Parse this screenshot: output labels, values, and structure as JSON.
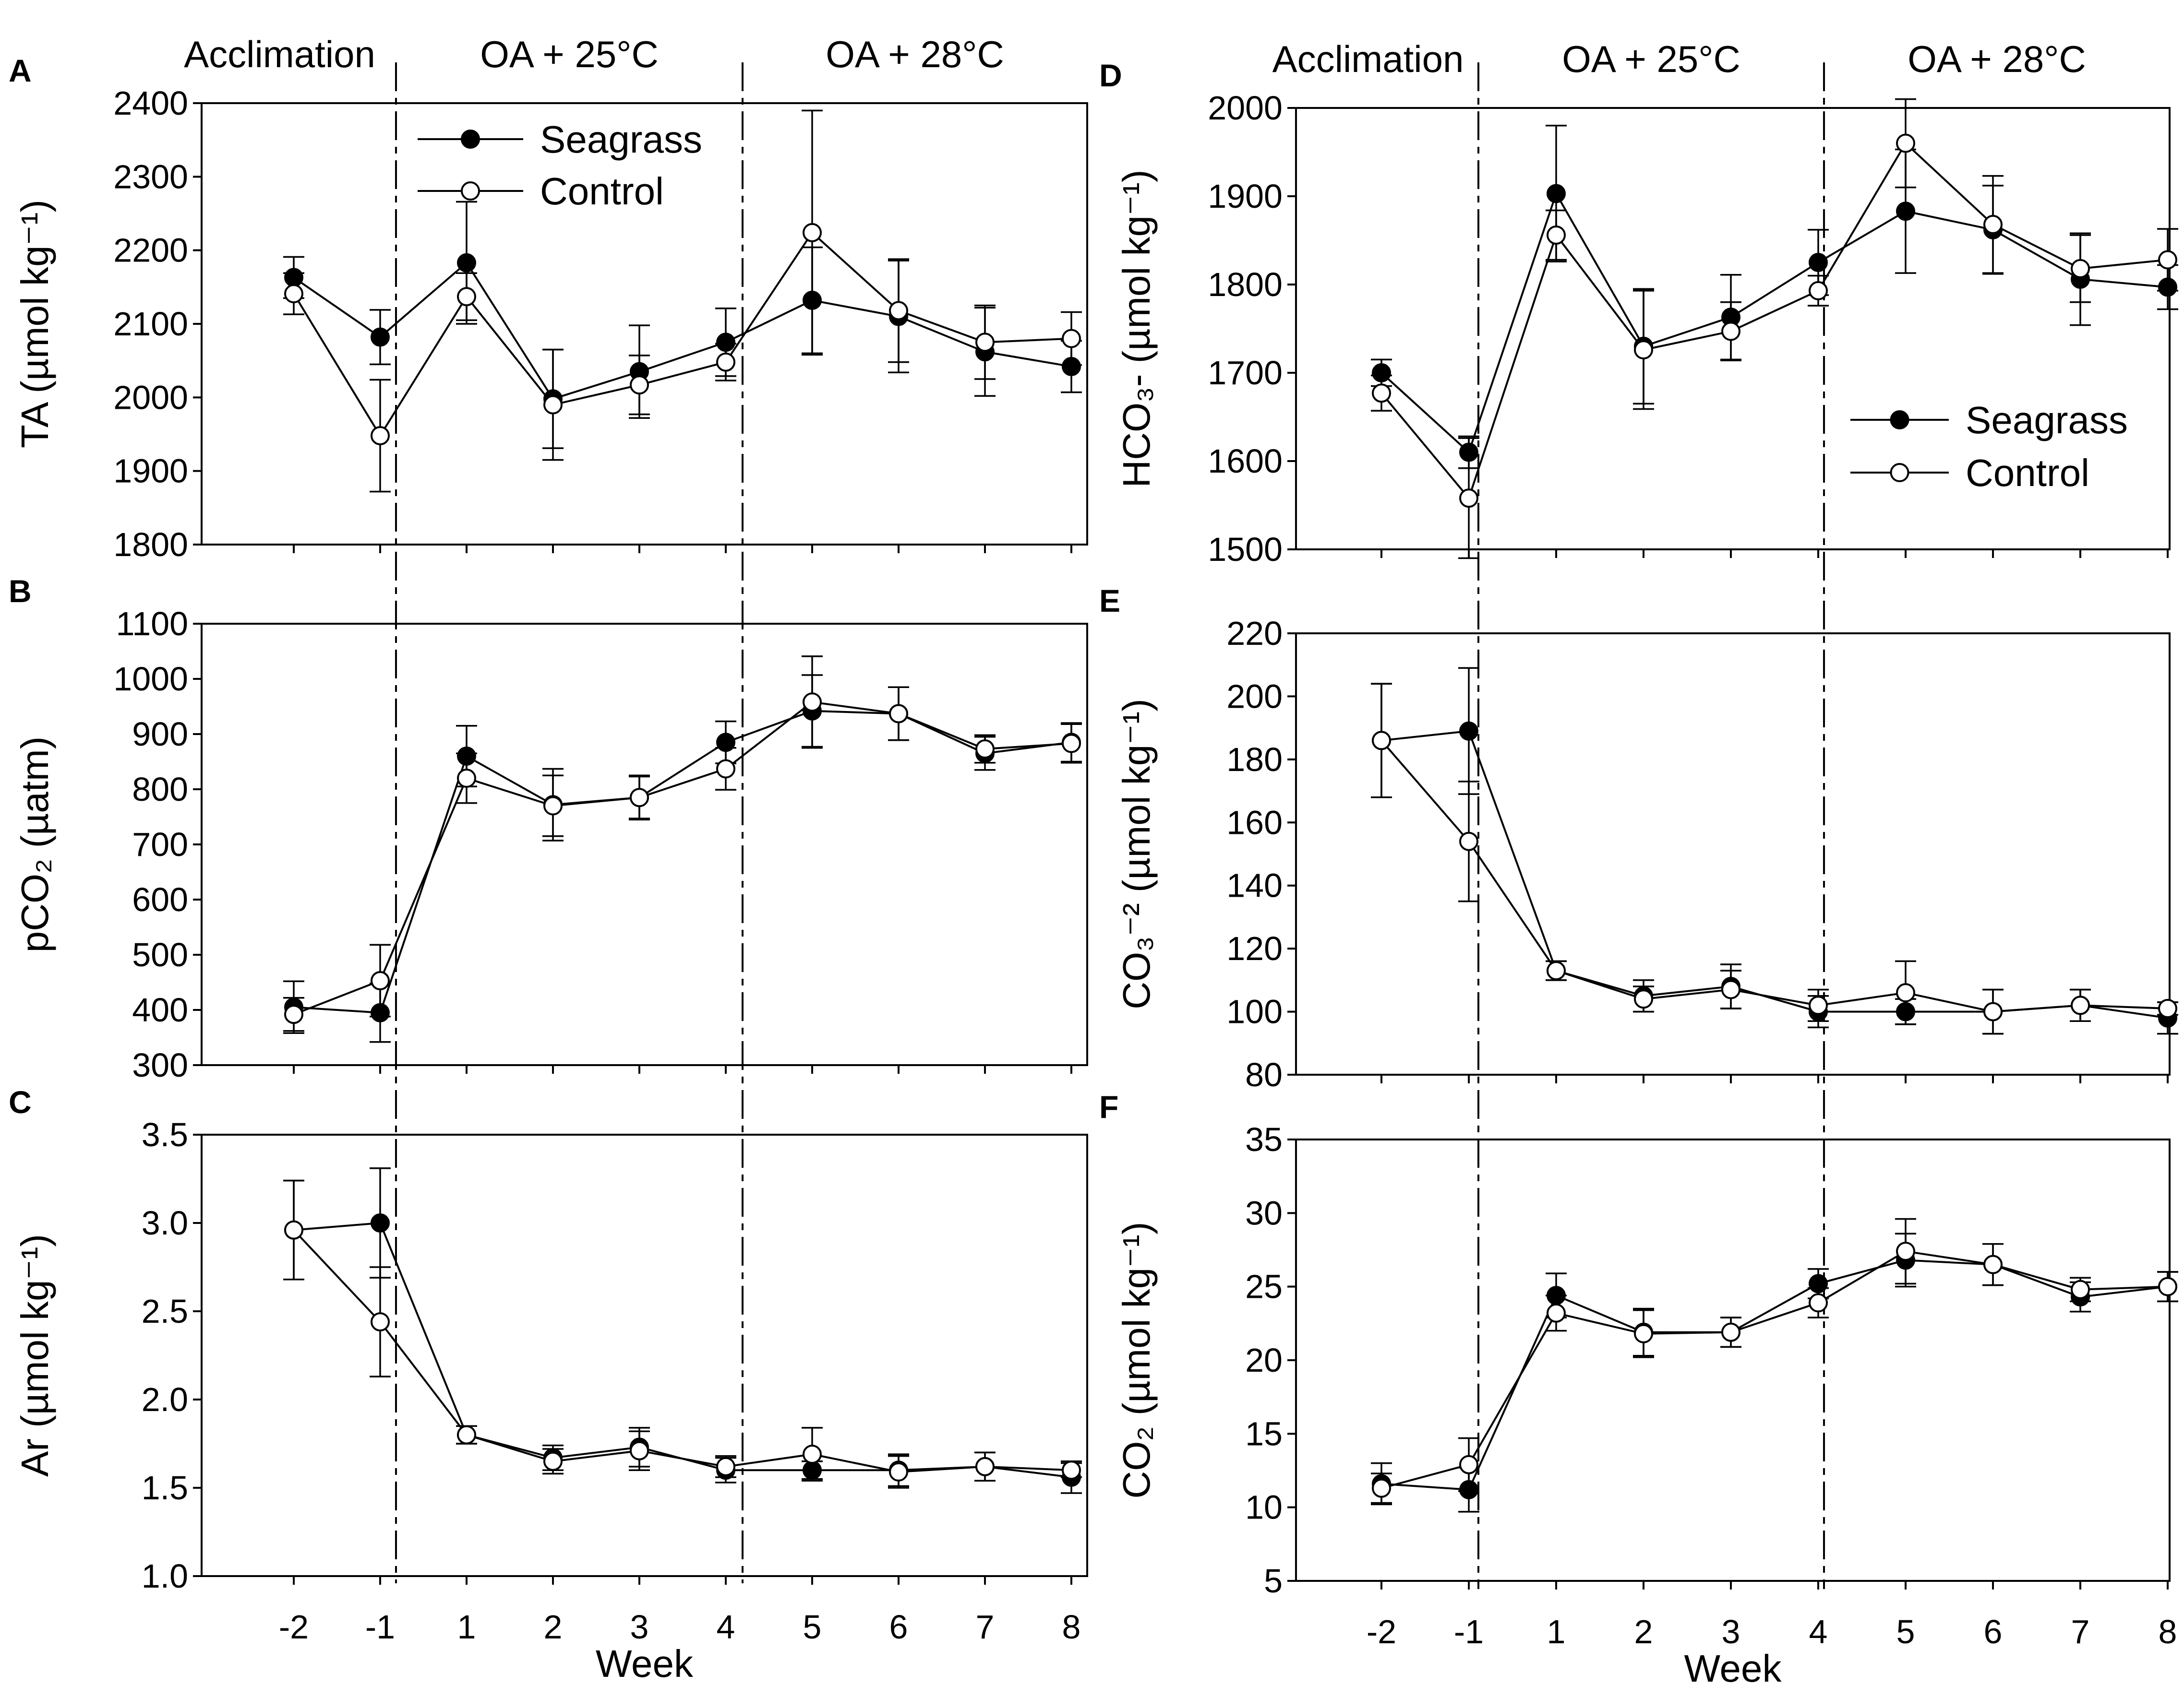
{
  "colors": {
    "ink": "#000000",
    "open_fill": "#ffffff",
    "filled": "#000000"
  },
  "legend": {
    "seagrass": "Seagrass",
    "control": "Control"
  },
  "x_ticks": [
    "-2",
    "-1",
    "1",
    "2",
    "3",
    "4",
    "5",
    "6",
    "7",
    "8"
  ],
  "x_label": "Week",
  "phases": [
    "Acclimation",
    "OA + 25°C",
    "OA + 28°C"
  ],
  "chart_data": [
    {
      "type": "line",
      "panel": "A",
      "ylabel": "TA (µmol kg⁻¹)",
      "ylim": [
        1800,
        2400
      ],
      "yticks": [
        1800,
        1900,
        2000,
        2100,
        2200,
        2300,
        2400
      ],
      "legend": "top-left",
      "series": [
        {
          "name": "Seagrass",
          "marker": "filled",
          "values": [
            2163,
            2082,
            2183,
            1998,
            2035,
            2075,
            2132,
            2110,
            2062,
            2042
          ],
          "errors": [
            28,
            37,
            83,
            67,
            63,
            46,
            72,
            76,
            60,
            35
          ]
        },
        {
          "name": "Control",
          "marker": "open",
          "values": [
            2141,
            1948,
            2137,
            1990,
            2017,
            2048,
            2224,
            2118,
            2075,
            2080
          ],
          "errors": [
            28,
            76,
            32,
            75,
            40,
            25,
            166,
            70,
            50,
            36
          ]
        }
      ]
    },
    {
      "type": "line",
      "panel": "B",
      "ylabel": "pCO₂ (µatm)",
      "ylim": [
        300,
        1100
      ],
      "yticks": [
        300,
        400,
        500,
        600,
        700,
        800,
        900,
        1000,
        1100
      ],
      "series": [
        {
          "name": "Seagrass",
          "marker": "filled",
          "values": [
            405,
            395,
            860,
            772,
            785,
            885,
            942,
            937,
            865,
            885
          ],
          "errors": [
            47,
            53,
            55,
            65,
            38,
            38,
            65,
            48,
            30,
            35
          ]
        },
        {
          "name": "Control",
          "marker": "open",
          "values": [
            392,
            453,
            820,
            770,
            785,
            837,
            958,
            937,
            873,
            883
          ],
          "errors": [
            30,
            65,
            45,
            55,
            40,
            38,
            83,
            48,
            25,
            35
          ]
        }
      ]
    },
    {
      "type": "line",
      "panel": "C",
      "ylabel": "Ar (µmol kg⁻¹)",
      "ylim": [
        1.0,
        3.5
      ],
      "yticks": [
        1.0,
        1.5,
        2.0,
        2.5,
        3.0,
        3.5
      ],
      "ytick_decimals": 1,
      "series": [
        {
          "name": "Seagrass",
          "marker": "filled",
          "values": [
            2.96,
            3.0,
            1.8,
            1.67,
            1.73,
            1.6,
            1.6,
            1.6,
            1.62,
            1.56
          ],
          "errors": [
            0.28,
            0.31,
            0.05,
            0.07,
            0.11,
            0.07,
            0.05,
            0.09,
            0.08,
            0.09
          ]
        },
        {
          "name": "Control",
          "marker": "open",
          "values": [
            2.96,
            2.44,
            1.8,
            1.65,
            1.71,
            1.62,
            1.69,
            1.59,
            1.62,
            1.6
          ],
          "errors": [
            0.28,
            0.31,
            0.05,
            0.07,
            0.11,
            0.06,
            0.15,
            0.09,
            0.08,
            0.04
          ]
        }
      ]
    },
    {
      "type": "line",
      "panel": "D",
      "ylabel": "HCO₃- (µmol kg⁻¹)",
      "ylim": [
        1500,
        2000
      ],
      "yticks": [
        1500,
        1600,
        1700,
        1800,
        1900,
        2000
      ],
      "legend": "lower-right",
      "series": [
        {
          "name": "Seagrass",
          "marker": "filled",
          "values": [
            1700,
            1610,
            1903,
            1730,
            1763,
            1825,
            1883,
            1862,
            1806,
            1797
          ],
          "errors": [
            15,
            18,
            77,
            65,
            48,
            37,
            70,
            50,
            52,
            25
          ]
        },
        {
          "name": "Control",
          "marker": "open",
          "values": [
            1677,
            1558,
            1856,
            1726,
            1747,
            1793,
            1960,
            1868,
            1818,
            1828
          ],
          "errors": [
            20,
            68,
            28,
            67,
            33,
            17,
            50,
            55,
            38,
            35
          ]
        }
      ]
    },
    {
      "type": "line",
      "panel": "E",
      "ylabel": "CO₃⁻² (µmol kg⁻¹)",
      "ylim": [
        80,
        220
      ],
      "yticks": [
        80,
        100,
        120,
        140,
        160,
        180,
        200,
        220
      ],
      "series": [
        {
          "name": "Seagrass",
          "marker": "filled",
          "values": [
            186,
            189,
            113,
            105,
            108,
            100,
            100,
            100,
            102,
            98
          ],
          "errors": [
            18,
            20,
            3,
            5,
            7,
            5,
            4,
            7,
            5,
            5
          ]
        },
        {
          "name": "Control",
          "marker": "open",
          "values": [
            186,
            154,
            113,
            104,
            107,
            102,
            106,
            100,
            102,
            101
          ],
          "errors": [
            18,
            19,
            3,
            4,
            6,
            5,
            10,
            7,
            5,
            2
          ]
        }
      ]
    },
    {
      "type": "line",
      "panel": "F",
      "ylabel": "CO₂ (µmol kg⁻¹)",
      "ylim": [
        5,
        35
      ],
      "yticks": [
        5,
        10,
        15,
        20,
        25,
        30,
        35
      ],
      "series": [
        {
          "name": "Seagrass",
          "marker": "filled",
          "values": [
            11.6,
            11.2,
            24.4,
            21.9,
            21.9,
            25.2,
            26.8,
            26.5,
            24.3,
            25.0
          ],
          "errors": [
            1.4,
            1.5,
            1.5,
            1.6,
            1.0,
            1.0,
            1.8,
            1.4,
            1.0,
            1.0
          ]
        },
        {
          "name": "Control",
          "marker": "open",
          "values": [
            11.3,
            12.9,
            23.2,
            21.8,
            21.9,
            23.9,
            27.4,
            26.5,
            24.8,
            25.0
          ],
          "errors": [
            1.0,
            1.8,
            1.2,
            1.6,
            1.0,
            1.0,
            2.2,
            1.4,
            0.8,
            1.0
          ]
        }
      ]
    }
  ]
}
